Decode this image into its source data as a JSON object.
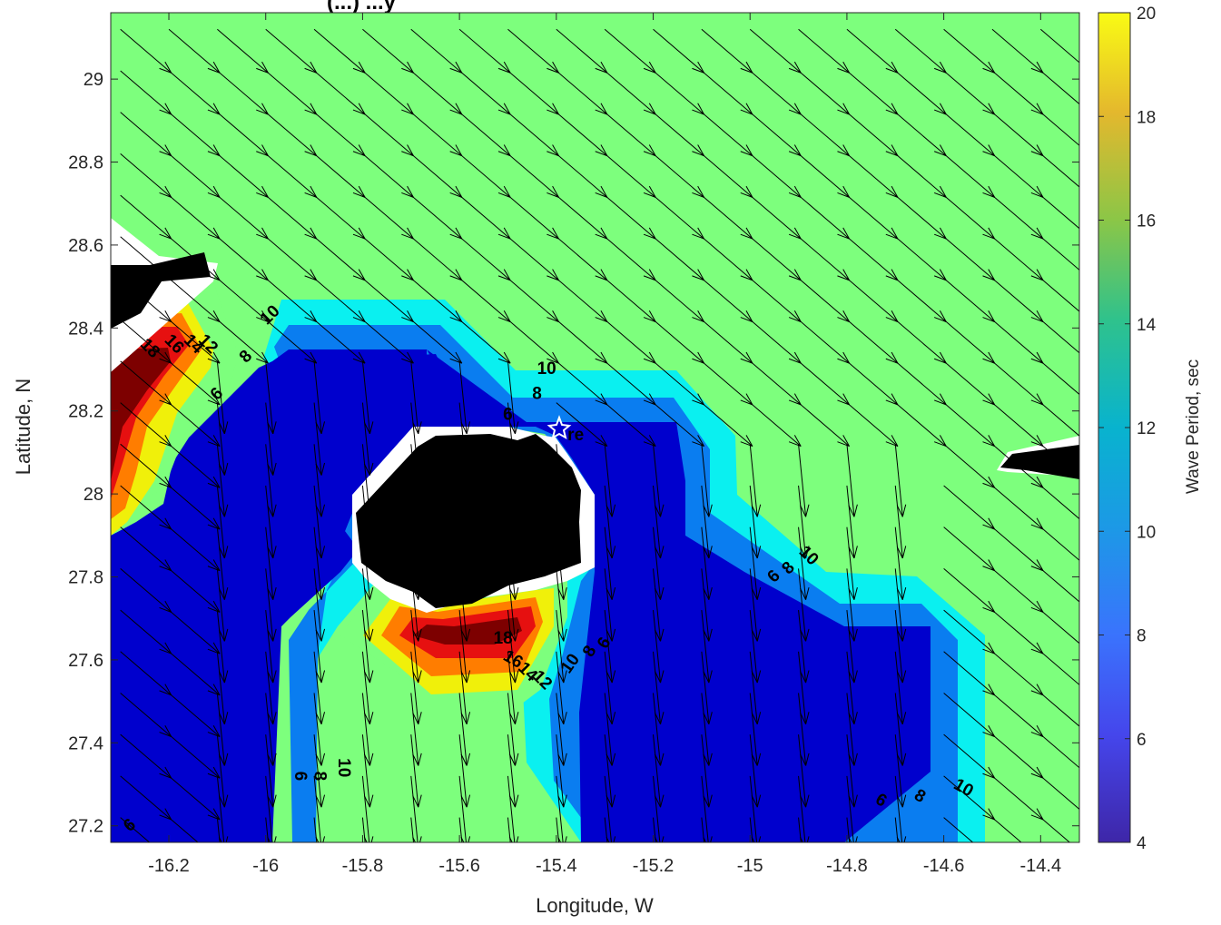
{
  "chart_data": {
    "type": "contour",
    "title": "(...) ...y",
    "xlabel": "Longitude, W",
    "ylabel": "Latitude, N",
    "xlim": [
      -16.32,
      -14.32
    ],
    "ylim": [
      27.16,
      29.16
    ],
    "xticks": [
      "-16.2",
      "-16",
      "-15.8",
      "-15.6",
      "-15.4",
      "-15.2",
      "-15",
      "-14.8",
      "-14.6",
      "-14.4"
    ],
    "yticks": [
      "27.2",
      "27.4",
      "27.6",
      "27.8",
      "28",
      "28.2",
      "28.4",
      "28.6",
      "28.8",
      "29"
    ],
    "colorbar": {
      "label": "Wave Period, sec",
      "range": [
        4,
        20
      ],
      "ticks": [
        "4",
        "6",
        "8",
        "10",
        "12",
        "14",
        "16",
        "18",
        "20"
      ]
    },
    "levels": [
      6,
      8,
      10,
      12,
      14,
      16,
      18
    ],
    "level_colors": {
      "lt6": "#0000cd",
      "6to8": "#0a7df0",
      "8to10": "#0af0f0",
      "10to12": "#7dff7d",
      "12to14": "#f0f00a",
      "14to16": "#ff7d00",
      "16to18": "#e61010",
      "gt18": "#7d0000",
      "land": "#000000",
      "background": "#7dff7d"
    },
    "contour_labels": [
      {
        "text": "10",
        "x": -15.99,
        "y": 28.43,
        "rot": -45
      },
      {
        "text": "8",
        "x": -16.04,
        "y": 28.33,
        "rot": -45
      },
      {
        "text": "6",
        "x": -16.1,
        "y": 28.24,
        "rot": -45
      },
      {
        "text": "18",
        "x": -16.24,
        "y": 28.35,
        "rot": 45
      },
      {
        "text": "16",
        "x": -16.19,
        "y": 28.36,
        "rot": 45
      },
      {
        "text": "14",
        "x": -16.15,
        "y": 28.36,
        "rot": 45
      },
      {
        "text": "12",
        "x": -16.12,
        "y": 28.36,
        "rot": 45
      },
      {
        "text": "10",
        "x": -15.42,
        "y": 28.3,
        "rot": 0
      },
      {
        "text": "8",
        "x": -15.44,
        "y": 28.24,
        "rot": 0
      },
      {
        "text": "6",
        "x": -15.5,
        "y": 28.19,
        "rot": 0
      },
      {
        "text": "re",
        "x": -15.36,
        "y": 28.14,
        "rot": 0
      },
      {
        "text": "10",
        "x": -14.88,
        "y": 27.85,
        "rot": 45
      },
      {
        "text": "8",
        "x": -14.92,
        "y": 27.82,
        "rot": -45
      },
      {
        "text": "6",
        "x": -14.95,
        "y": 27.8,
        "rot": -45
      },
      {
        "text": "18",
        "x": -15.51,
        "y": 27.65,
        "rot": 0
      },
      {
        "text": "16",
        "x": -15.49,
        "y": 27.6,
        "rot": 30
      },
      {
        "text": "14",
        "x": -15.46,
        "y": 27.57,
        "rot": 45
      },
      {
        "text": "12",
        "x": -15.43,
        "y": 27.55,
        "rot": 45
      },
      {
        "text": "10",
        "x": -15.37,
        "y": 27.59,
        "rot": -55
      },
      {
        "text": "8",
        "x": -15.33,
        "y": 27.62,
        "rot": -60
      },
      {
        "text": "6",
        "x": -15.3,
        "y": 27.64,
        "rot": -60
      },
      {
        "text": "6",
        "x": -15.93,
        "y": 27.32,
        "rot": 90
      },
      {
        "text": "8",
        "x": -15.89,
        "y": 27.32,
        "rot": 90
      },
      {
        "text": "10",
        "x": -15.84,
        "y": 27.34,
        "rot": 90
      },
      {
        "text": "6",
        "x": -16.28,
        "y": 27.2,
        "rot": -40
      },
      {
        "text": "6",
        "x": -14.73,
        "y": 27.26,
        "rot": 30
      },
      {
        "text": "8",
        "x": -14.65,
        "y": 27.27,
        "rot": 30
      },
      {
        "text": "10",
        "x": -14.56,
        "y": 27.29,
        "rot": 30
      }
    ],
    "vectors": {
      "nw_region_direction": "south-east",
      "sw_region_direction": "south",
      "grid_spacing_deg": 0.1
    }
  }
}
